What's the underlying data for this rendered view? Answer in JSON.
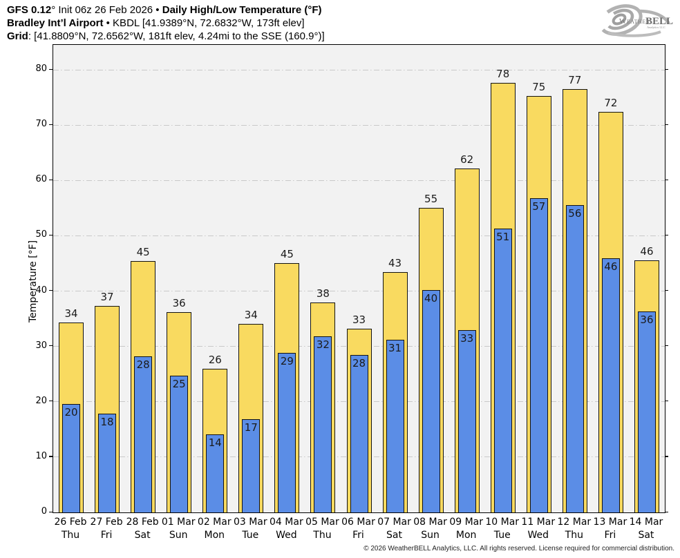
{
  "header": {
    "line1_bold1": "GFS 0.12",
    "line1_regular": "° Init 06z 26 Feb 2026 • ",
    "line1_bold2": "Daily High/Low Temperature (°F)",
    "line2_bold": "Bradley Int’l Airport",
    "line2_regular": " • KBDL [41.9389°N, 72.6832°W, 173ft elev]",
    "line3_bold": "Grid",
    "line3_regular": ": [41.8809°N, 72.6562°W, 181ft elev, 4.24mi to the SSE (160.9°)]"
  },
  "logo": {
    "weather": "Weather",
    "bell": "BELL",
    "subtitle": "Analytics LLC"
  },
  "chart_data": {
    "type": "bar",
    "title": "Daily High/Low Temperature (°F)",
    "ylabel": "Temperature [°F]",
    "ylim": [
      0,
      84.5
    ],
    "yticks": [
      0,
      10,
      20,
      30,
      40,
      50,
      60,
      70,
      80
    ],
    "grid": "horizontal dash-dot",
    "legend": "none",
    "categories_date": [
      "26 Feb",
      "27 Feb",
      "28 Feb",
      "01 Mar",
      "02 Mar",
      "03 Mar",
      "04 Mar",
      "05 Mar",
      "06 Mar",
      "07 Mar",
      "08 Mar",
      "09 Mar",
      "10 Mar",
      "11 Mar",
      "12 Mar",
      "13 Mar",
      "14 Mar"
    ],
    "categories_day": [
      "Thu",
      "Fri",
      "Sat",
      "Sun",
      "Mon",
      "Tue",
      "Wed",
      "Thu",
      "Fri",
      "Sat",
      "Sun",
      "Mon",
      "Tue",
      "Wed",
      "Thu",
      "Fri",
      "Sat"
    ],
    "series": [
      {
        "name": "Daily High",
        "color": "#f9da60",
        "labels": [
          34,
          37,
          45,
          36,
          26,
          34,
          45,
          38,
          33,
          43,
          55,
          62,
          78,
          75,
          77,
          72,
          46
        ],
        "values": [
          34.3,
          37.3,
          45.4,
          36.2,
          26.0,
          34.1,
          45.1,
          37.9,
          33.2,
          43.4,
          55.0,
          62.1,
          77.6,
          75.3,
          76.5,
          72.4,
          45.6
        ]
      },
      {
        "name": "Daily Low",
        "color": "#5b8de6",
        "labels": [
          20,
          18,
          28,
          25,
          14,
          17,
          29,
          32,
          28,
          31,
          40,
          33,
          51,
          57,
          56,
          46,
          36
        ],
        "values": [
          19.6,
          17.9,
          28.2,
          24.7,
          14.1,
          16.9,
          28.8,
          31.8,
          28.4,
          31.2,
          40.2,
          33.0,
          51.3,
          56.8,
          55.5,
          45.9,
          36.3
        ]
      }
    ]
  },
  "colors": {
    "plot_background": "#f2f2f2",
    "figure_background": "#ffffff",
    "gridline": "#c9c9c9",
    "bar_border": "#111111",
    "high_bar": "#f9da60",
    "low_bar": "#5b8de6"
  },
  "footer": {
    "copyright": "© 2026 WeatherBELL Analytics, LLC. All rights reserved. License required for commercial distribution."
  }
}
